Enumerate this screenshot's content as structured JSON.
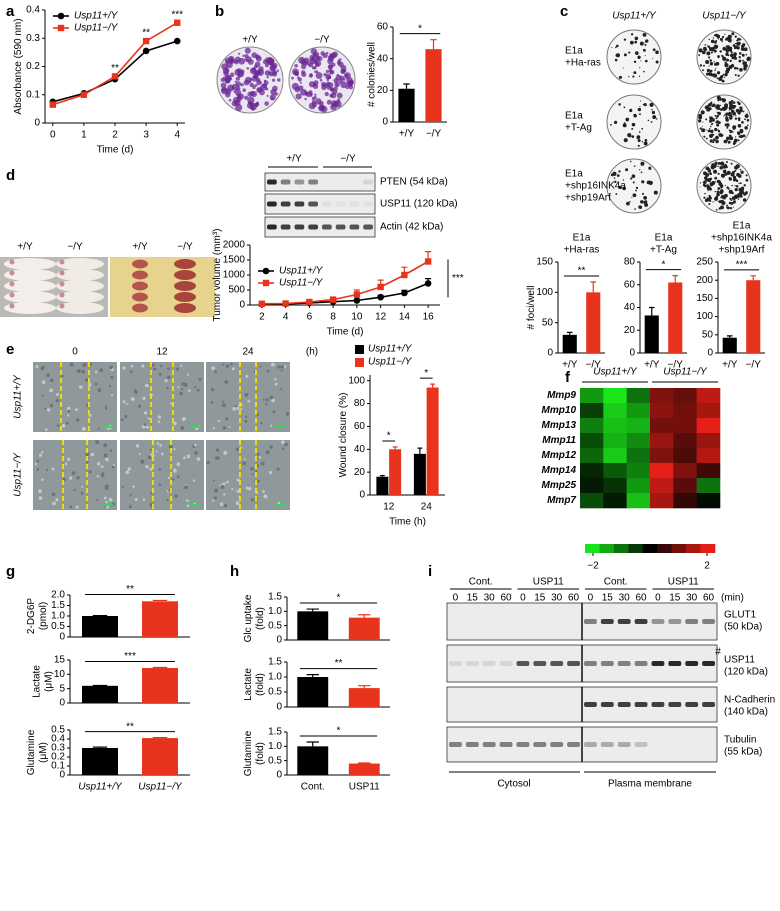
{
  "figure": {
    "panel_labels": [
      "a",
      "b",
      "c",
      "d",
      "e",
      "f",
      "g",
      "h",
      "i"
    ],
    "b_plates": [
      "+/Y",
      "−/Y"
    ],
    "c_plates": {
      "columns": [
        "Usp11+/Y",
        "Usp11−/Y"
      ],
      "rows": [
        [
          "E1a",
          "+Ha-ras"
        ],
        [
          "E1a",
          "+T-Ag"
        ],
        [
          "E1a",
          "+shp16INK4a",
          "+shp19Arf"
        ]
      ]
    },
    "d_photos": [
      "+/Y",
      "−/Y",
      "+/Y",
      "−/Y"
    ],
    "d_blot": {
      "groups": [
        "+/Y",
        "−/Y"
      ],
      "bands": [
        "PTEN (54 kDa)",
        "USP11 (120 kDa)",
        "Actin (42 kDa)"
      ]
    },
    "e_images": {
      "columns": [
        "0",
        "12",
        "24"
      ],
      "unit": "(h)",
      "rows": [
        "Usp11+/Y",
        "Usp11−/Y"
      ]
    },
    "i_blot": {
      "groups": [
        "Cont.",
        "USP11",
        "Cont.",
        "USP11"
      ],
      "unit": "(min)",
      "lanes": [
        "0",
        "15",
        "30",
        "60"
      ],
      "bands": [
        [
          "GLUT1",
          "(50 kDa)"
        ],
        [
          "USP11",
          "(120 kDa)"
        ],
        [
          "N-Cadherin",
          "(140 kDa)"
        ],
        [
          "Tubulin",
          "(55 kDa)"
        ]
      ],
      "marker": "#",
      "fractions": [
        "Cytosol",
        "Plasma membrane"
      ]
    }
  },
  "chart_data": [
    {
      "type": "line",
      "xlabel": "Time (d)",
      "ylabel": "Absorbance (590 nm)",
      "x": [
        0,
        1,
        2,
        3,
        4
      ],
      "xlim": [
        -0.25,
        4.25
      ],
      "xticks": [
        0,
        1,
        2,
        3,
        4
      ],
      "ylim": [
        0,
        0.4
      ],
      "yticks": [
        0,
        0.1,
        0.2,
        0.3,
        0.4
      ],
      "legend": "upper left",
      "series": [
        {
          "name": "Usp11+/Y",
          "color": "#000000",
          "marker": "circle",
          "values": [
            0.075,
            0.105,
            0.155,
            0.255,
            0.29
          ]
        },
        {
          "name": "Usp11−/Y",
          "color": "#e8341c",
          "marker": "square",
          "values": [
            0.065,
            0.1,
            0.165,
            0.29,
            0.355
          ]
        }
      ],
      "annotations": [
        null,
        null,
        "**",
        "**",
        "***"
      ]
    },
    {
      "type": "bar",
      "ylabel": "# colonies/well",
      "categories": [
        "+/Y",
        "−/Y"
      ],
      "values": [
        21,
        46
      ],
      "errors": [
        3,
        6
      ],
      "colors": [
        "#000000",
        "#e8341c"
      ],
      "ylim": [
        0,
        60
      ],
      "yticks": [
        0,
        20,
        40,
        60
      ],
      "annotation": "*"
    },
    {
      "type": "bar",
      "title": [
        "E1a",
        "+Ha-ras"
      ],
      "ylabel": "# foci/well",
      "categories": [
        "+/Y",
        "−/Y"
      ],
      "values": [
        30,
        100
      ],
      "errors": [
        4,
        17
      ],
      "colors": [
        "#000000",
        "#e8341c"
      ],
      "ylim": [
        0,
        150
      ],
      "yticks": [
        0,
        50,
        100,
        150
      ],
      "annotation": "**"
    },
    {
      "type": "bar",
      "title": [
        "E1a",
        "+T-Ag"
      ],
      "categories": [
        "+/Y",
        "−/Y"
      ],
      "values": [
        33,
        62
      ],
      "errors": [
        7,
        6
      ],
      "colors": [
        "#000000",
        "#e8341c"
      ],
      "ylim": [
        0,
        80
      ],
      "yticks": [
        0,
        20,
        40,
        60,
        80
      ],
      "annotation": "*"
    },
    {
      "type": "bar",
      "title": [
        "E1a",
        "+shp16INK4a",
        "+shp19Arf"
      ],
      "categories": [
        "+/Y",
        "−/Y"
      ],
      "values": [
        42,
        200
      ],
      "errors": [
        5,
        12
      ],
      "colors": [
        "#000000",
        "#e8341c"
      ],
      "ylim": [
        0,
        250
      ],
      "yticks": [
        0,
        50,
        100,
        150,
        200,
        250
      ],
      "annotation": "***"
    },
    {
      "type": "line",
      "xlabel": "Time (d)",
      "ylabel": "Tumor volume (mm³)",
      "x": [
        2,
        4,
        6,
        8,
        10,
        12,
        14,
        16
      ],
      "xlim": [
        1,
        17
      ],
      "xticks": [
        2,
        4,
        6,
        8,
        10,
        12,
        14,
        16
      ],
      "ylim": [
        0,
        2000
      ],
      "yticks": [
        0,
        500,
        1000,
        1500,
        2000
      ],
      "legend": "center left",
      "series": [
        {
          "name": "Usp11+/Y",
          "color": "#000000",
          "marker": "circle",
          "values": [
            30,
            40,
            70,
            110,
            150,
            260,
            400,
            720
          ],
          "errors": [
            10,
            10,
            20,
            30,
            40,
            60,
            90,
            160
          ]
        },
        {
          "name": "Usp11−/Y",
          "color": "#e8341c",
          "marker": "square",
          "values": [
            40,
            50,
            100,
            180,
            350,
            600,
            1000,
            1450
          ],
          "errors": [
            10,
            15,
            30,
            60,
            150,
            230,
            260,
            330
          ]
        }
      ],
      "annotation": "***"
    },
    {
      "type": "bar",
      "xlabel": "Time (h)",
      "ylabel": "Wound closure (%)",
      "categories": [
        "12",
        "24"
      ],
      "legend": "above",
      "series": [
        {
          "name": "Usp11+/Y",
          "color": "#000000",
          "values": [
            16,
            36
          ],
          "errors": [
            1,
            5
          ]
        },
        {
          "name": "Usp11−/Y",
          "color": "#e8341c",
          "values": [
            40,
            94
          ],
          "errors": [
            2,
            3
          ]
        }
      ],
      "ylim": [
        0,
        105
      ],
      "yticks": [
        0,
        20,
        40,
        60,
        80,
        100
      ],
      "annotations": [
        "*",
        "*"
      ]
    },
    {
      "type": "heatmap",
      "column_groups": [
        "Usp11+/Y",
        "Usp11−/Y"
      ],
      "rows": [
        "Mmp9",
        "Mmp10",
        "Mmp13",
        "Mmp11",
        "Mmp12",
        "Mmp14",
        "Mmp25",
        "Mmp7"
      ],
      "values": [
        [
          -1.2,
          -1.8,
          -0.9,
          1.0,
          0.8,
          1.5
        ],
        [
          -0.5,
          -1.6,
          -1.2,
          1.1,
          0.9,
          1.3
        ],
        [
          -1.0,
          -1.5,
          -1.4,
          0.9,
          0.9,
          1.8
        ],
        [
          -0.6,
          -1.4,
          -1.1,
          1.2,
          0.7,
          1.2
        ],
        [
          -0.8,
          -1.6,
          -0.9,
          1.0,
          0.6,
          1.4
        ],
        [
          -0.3,
          -0.7,
          -1.0,
          1.8,
          1.0,
          0.5
        ],
        [
          -0.2,
          -0.4,
          -1.2,
          1.5,
          0.7,
          -0.9
        ],
        [
          -0.6,
          -0.2,
          -1.5,
          1.3,
          0.4,
          -0.1
        ]
      ],
      "zlim": [
        -2,
        2
      ],
      "colorbar_ticks": [
        {
          "value": -2,
          "label": "−2"
        },
        2
      ]
    },
    {
      "type": "bar",
      "ylabel": [
        "2-DG6P",
        "(pmol)"
      ],
      "values": [
        1,
        1.7
      ],
      "errors": [
        0.02,
        0.04
      ],
      "colors": [
        "#000000",
        "#e8341c"
      ],
      "ylim": [
        0,
        2
      ],
      "yticks": [
        0,
        0.5,
        {
          "value": 1,
          "label": "1.0"
        },
        1.5,
        {
          "value": 2,
          "label": "2.0"
        }
      ],
      "annotation": "**"
    },
    {
      "type": "bar",
      "ylabel": [
        "Lactate",
        "(μM)"
      ],
      "values": [
        6,
        12.2
      ],
      "errors": [
        0.1,
        0.2
      ],
      "colors": [
        "#000000",
        "#e8341c"
      ],
      "ylim": [
        0,
        15
      ],
      "yticks": [
        0,
        5,
        10,
        15
      ],
      "annotation": "***"
    },
    {
      "type": "bar",
      "ylabel": [
        "Glutamine",
        "(μM)"
      ],
      "categories": [
        "Usp11+/Y",
        "Usp11−/Y"
      ],
      "values": [
        0.3,
        0.41
      ],
      "errors": [
        0.01,
        0.005
      ],
      "colors": [
        "#000000",
        "#e8341c"
      ],
      "ylim": [
        0,
        0.5
      ],
      "yticks": [
        0,
        0.1,
        0.2,
        0.3,
        0.4,
        0.5
      ],
      "annotation": "**"
    },
    {
      "type": "bar",
      "ylabel": [
        "Glc uptake",
        "(fold)"
      ],
      "values": [
        1,
        0.78
      ],
      "errors": [
        0.08,
        0.1
      ],
      "colors": [
        "#000000",
        "#e8341c"
      ],
      "ylim": [
        0,
        1.5
      ],
      "yticks": [
        0,
        0.5,
        {
          "value": 1,
          "label": "1.0"
        },
        1.5
      ],
      "annotation": "*"
    },
    {
      "type": "bar",
      "ylabel": [
        "Lactate",
        "(fold)"
      ],
      "values": [
        1,
        0.63
      ],
      "errors": [
        0.08,
        0.08
      ],
      "colors": [
        "#000000",
        "#e8341c"
      ],
      "ylim": [
        0,
        1.5
      ],
      "yticks": [
        0,
        0.5,
        {
          "value": 1,
          "label": "1.0"
        },
        1.5
      ],
      "annotation": "**"
    },
    {
      "type": "bar",
      "ylabel": [
        "Glutamine",
        "(fold)"
      ],
      "categories": [
        "Cont.",
        "USP11"
      ],
      "values": [
        1,
        0.4
      ],
      "errors": [
        0.15,
        0.02
      ],
      "colors": [
        "#000000",
        "#e8341c"
      ],
      "ylim": [
        0,
        1.5
      ],
      "yticks": [
        0,
        0.5,
        {
          "value": 1,
          "label": "1.0"
        },
        1.5
      ],
      "annotation": "*"
    }
  ]
}
